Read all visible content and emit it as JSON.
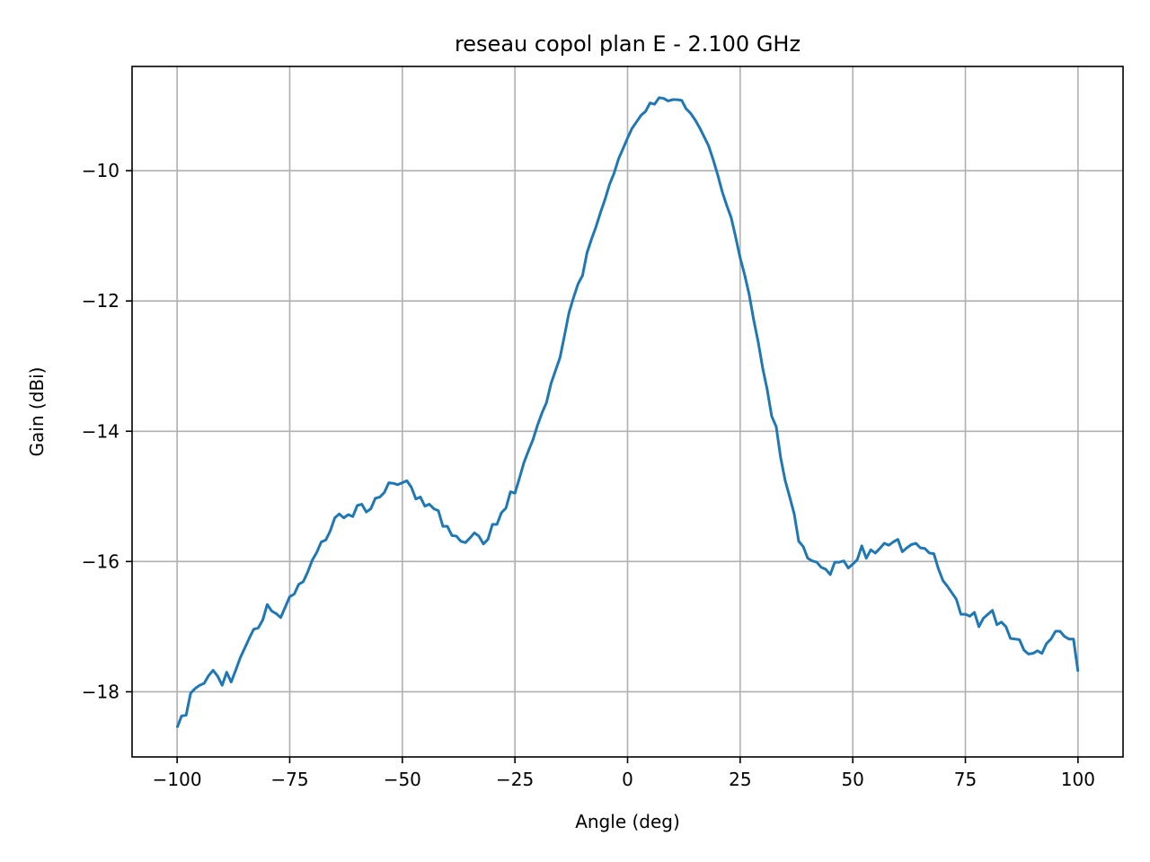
{
  "chart_data": {
    "type": "line",
    "title": "reseau copol plan E - 2.100 GHz",
    "xlabel": "Angle (deg)",
    "ylabel": "Gain (dBi)",
    "xlim": [
      -110,
      110
    ],
    "ylim": [
      -19.0,
      -8.4
    ],
    "x_ticks": [
      -100,
      -75,
      -50,
      -25,
      0,
      25,
      50,
      75,
      100
    ],
    "x_tick_labels": [
      "−100",
      "−75",
      "−50",
      "−25",
      "0",
      "25",
      "50",
      "75",
      "100"
    ],
    "y_ticks": [
      -18,
      -16,
      -14,
      -12,
      -10
    ],
    "y_tick_labels": [
      "−18",
      "−16",
      "−14",
      "−12",
      "−10"
    ],
    "grid": true,
    "series_color": "#1f77b4",
    "series": [
      {
        "x": [
          -100,
          -99,
          -98,
          -97,
          -96,
          -95,
          -94,
          -93,
          -92,
          -91,
          -90,
          -89,
          -88,
          -87,
          -86,
          -85,
          -84,
          -83,
          -82,
          -81,
          -80,
          -79,
          -78,
          -77,
          -76,
          -75,
          -74,
          -73,
          -72,
          -71,
          -70,
          -69,
          -68,
          -67,
          -66,
          -65,
          -64,
          -63,
          -62,
          -61,
          -60,
          -59,
          -58,
          -57,
          -56,
          -55,
          -54,
          -53,
          -52,
          -51,
          -50,
          -49,
          -48,
          -47,
          -46,
          -45,
          -44,
          -43,
          -42,
          -41,
          -40,
          -39,
          -38,
          -37,
          -36,
          -35,
          -34,
          -33,
          -32,
          -31,
          -30,
          -29,
          -28,
          -27,
          -26,
          -25,
          -24,
          -23,
          -22,
          -21,
          -20,
          -19,
          -18,
          -17,
          -16,
          -15,
          -14,
          -13,
          -12,
          -11,
          -10,
          -9,
          -8,
          -7,
          -6,
          -5,
          -4,
          -3,
          -2,
          -1,
          0,
          1,
          2,
          3,
          4,
          5,
          6,
          7,
          8,
          9,
          10,
          11,
          12,
          13,
          14,
          15,
          16,
          17,
          18,
          19,
          20,
          21,
          22,
          23,
          24,
          25,
          26,
          27,
          28,
          29,
          30,
          31,
          32,
          33,
          34,
          35,
          36,
          37,
          38,
          39,
          40,
          41,
          42,
          43,
          44,
          45,
          46,
          47,
          48,
          49,
          50,
          51,
          52,
          53,
          54,
          55,
          56,
          57,
          58,
          59,
          60,
          61,
          62,
          63,
          64,
          65,
          66,
          67,
          68,
          69,
          70,
          71,
          72,
          73,
          74,
          75,
          76,
          77,
          78,
          79,
          80,
          81,
          82,
          83,
          84,
          85,
          86,
          87,
          88,
          89,
          90,
          91,
          92,
          93,
          94,
          95,
          96,
          97,
          98,
          99,
          100
        ],
        "values": [
          -18.55,
          -18.37,
          -18.36,
          -18.02,
          -17.95,
          -17.9,
          -17.87,
          -17.75,
          -17.67,
          -17.76,
          -17.9,
          -17.7,
          -17.85,
          -17.67,
          -17.48,
          -17.33,
          -17.18,
          -17.04,
          -17.02,
          -16.9,
          -16.66,
          -16.76,
          -16.8,
          -16.86,
          -16.7,
          -16.54,
          -16.5,
          -16.35,
          -16.31,
          -16.16,
          -15.98,
          -15.86,
          -15.7,
          -15.67,
          -15.53,
          -15.33,
          -15.27,
          -15.33,
          -15.28,
          -15.31,
          -15.14,
          -15.12,
          -15.24,
          -15.19,
          -15.03,
          -15.01,
          -14.94,
          -14.79,
          -14.8,
          -14.82,
          -14.79,
          -14.76,
          -14.86,
          -15.04,
          -15.01,
          -15.15,
          -15.12,
          -15.19,
          -15.22,
          -15.46,
          -15.46,
          -15.6,
          -15.61,
          -15.69,
          -15.71,
          -15.64,
          -15.56,
          -15.61,
          -15.73,
          -15.66,
          -15.43,
          -15.43,
          -15.25,
          -15.18,
          -14.93,
          -14.95,
          -14.72,
          -14.48,
          -14.3,
          -14.13,
          -13.91,
          -13.72,
          -13.56,
          -13.27,
          -13.07,
          -12.87,
          -12.53,
          -12.18,
          -11.95,
          -11.74,
          -11.61,
          -11.26,
          -11.05,
          -10.86,
          -10.64,
          -10.44,
          -10.21,
          -10.04,
          -9.82,
          -9.66,
          -9.5,
          -9.35,
          -9.25,
          -9.15,
          -9.09,
          -8.96,
          -8.98,
          -8.88,
          -8.89,
          -8.93,
          -8.91,
          -8.91,
          -8.92,
          -9.05,
          -9.12,
          -9.22,
          -9.34,
          -9.48,
          -9.62,
          -9.83,
          -10.06,
          -10.32,
          -10.53,
          -10.72,
          -11.02,
          -11.34,
          -11.6,
          -11.9,
          -12.29,
          -12.63,
          -13.03,
          -13.36,
          -13.77,
          -13.93,
          -14.41,
          -14.76,
          -15.01,
          -15.27,
          -15.69,
          -15.77,
          -15.95,
          -15.99,
          -16.01,
          -16.09,
          -16.12,
          -16.2,
          -16.01,
          -16.01,
          -15.99,
          -16.1,
          -16.04,
          -15.97,
          -15.76,
          -15.95,
          -15.82,
          -15.87,
          -15.8,
          -15.72,
          -15.75,
          -15.7,
          -15.66,
          -15.85,
          -15.79,
          -15.74,
          -15.72,
          -15.79,
          -15.8,
          -15.87,
          -15.88,
          -16.11,
          -16.29,
          -16.38,
          -16.48,
          -16.58,
          -16.81,
          -16.81,
          -16.84,
          -16.78,
          -17.0,
          -16.87,
          -16.81,
          -16.75,
          -16.97,
          -16.93,
          -17.0,
          -17.18,
          -17.19,
          -17.2,
          -17.36,
          -17.42,
          -17.41,
          -17.37,
          -17.41,
          -17.26,
          -17.19,
          -17.07,
          -17.07,
          -17.15,
          -17.19,
          -17.19,
          -17.69
        ]
      }
    ]
  }
}
